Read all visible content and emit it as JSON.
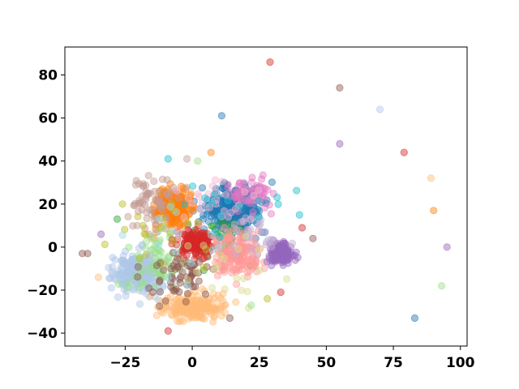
{
  "chart_data": {
    "type": "scatter",
    "title": "",
    "xlabel": "",
    "ylabel": "",
    "xlim": [
      -47.5,
      102.5
    ],
    "ylim": [
      -46,
      93
    ],
    "xticks": [
      -25,
      0,
      25,
      50,
      75,
      100
    ],
    "yticks": [
      -40,
      -20,
      0,
      20,
      40,
      60,
      80
    ],
    "grid": false,
    "legend": "none",
    "marker_alpha": 0.45,
    "clusters": [
      {
        "color": "#1f77b4",
        "center": [
          16,
          17
        ],
        "spread": [
          10,
          9
        ],
        "count": 260
      },
      {
        "color": "#aec7e8",
        "center": [
          -20,
          -12
        ],
        "spread": [
          8,
          8
        ],
        "count": 240
      },
      {
        "color": "#ff7f0e",
        "center": [
          -7,
          18
        ],
        "spread": [
          6,
          7
        ],
        "count": 220
      },
      {
        "color": "#ffbb78",
        "center": [
          0,
          -28
        ],
        "spread": [
          10,
          5
        ],
        "count": 200
      },
      {
        "color": "#2ca02c",
        "center": [
          12,
          2
        ],
        "spread": [
          9,
          9
        ],
        "count": 40
      },
      {
        "color": "#98df8a",
        "center": [
          -12,
          -6
        ],
        "spread": [
          10,
          10
        ],
        "count": 70
      },
      {
        "color": "#d62728",
        "center": [
          1,
          2
        ],
        "spread": [
          5,
          5
        ],
        "count": 150
      },
      {
        "color": "#ff9896",
        "center": [
          18,
          -3
        ],
        "spread": [
          8,
          10
        ],
        "count": 160
      },
      {
        "color": "#9467bd",
        "center": [
          33,
          -3
        ],
        "spread": [
          4,
          4
        ],
        "count": 150
      },
      {
        "color": "#c5b0d5",
        "center": [
          24,
          6
        ],
        "spread": [
          8,
          8
        ],
        "count": 30
      },
      {
        "color": "#8c564b",
        "center": [
          -5,
          -14
        ],
        "spread": [
          10,
          10
        ],
        "count": 60
      },
      {
        "color": "#c49c94",
        "center": [
          -14,
          20
        ],
        "spread": [
          9,
          10
        ],
        "count": 70
      },
      {
        "color": "#e377c2",
        "center": [
          21,
          25
        ],
        "spread": [
          7,
          7
        ],
        "count": 60
      },
      {
        "color": "#f7b6d2",
        "center": [
          8,
          22
        ],
        "spread": [
          12,
          10
        ],
        "count": 30
      },
      {
        "color": "#bcbd22",
        "center": [
          -10,
          8
        ],
        "spread": [
          15,
          15
        ],
        "count": 20
      },
      {
        "color": "#dbdb8d",
        "center": [
          15,
          -10
        ],
        "spread": [
          15,
          15
        ],
        "count": 20
      },
      {
        "color": "#17becf",
        "center": [
          15,
          20
        ],
        "spread": [
          15,
          12
        ],
        "count": 15
      },
      {
        "color": "#9edae5",
        "center": [
          -5,
          5
        ],
        "spread": [
          15,
          15
        ],
        "count": 15
      }
    ],
    "outliers": [
      {
        "x": 29,
        "y": 86,
        "color": "#d62728"
      },
      {
        "x": 55,
        "y": 74,
        "color": "#8c564b"
      },
      {
        "x": 11,
        "y": 61,
        "color": "#1f77b4"
      },
      {
        "x": 70,
        "y": 64,
        "color": "#aec7e8"
      },
      {
        "x": 55,
        "y": 48,
        "color": "#9467bd"
      },
      {
        "x": 79,
        "y": 44,
        "color": "#d62728"
      },
      {
        "x": 89,
        "y": 32,
        "color": "#ffbb78"
      },
      {
        "x": 90,
        "y": 17,
        "color": "#ff7f0e"
      },
      {
        "x": 95,
        "y": 0,
        "color": "#9467bd"
      },
      {
        "x": 93,
        "y": -18,
        "color": "#98df8a"
      },
      {
        "x": 83,
        "y": -33,
        "color": "#1f77b4"
      },
      {
        "x": 45,
        "y": 4,
        "color": "#8c564b"
      },
      {
        "x": 41,
        "y": 9,
        "color": "#d62728"
      },
      {
        "x": 40,
        "y": 15,
        "color": "#17becf"
      },
      {
        "x": -41,
        "y": -3,
        "color": "#8c564b"
      },
      {
        "x": -39,
        "y": -3,
        "color": "#8c564b"
      },
      {
        "x": -34,
        "y": 6,
        "color": "#9467bd"
      },
      {
        "x": -35,
        "y": -14,
        "color": "#ffbb78"
      },
      {
        "x": -9,
        "y": -39,
        "color": "#d62728"
      },
      {
        "x": 14,
        "y": -33,
        "color": "#8c564b"
      },
      {
        "x": 28,
        "y": -24,
        "color": "#bcbd22"
      },
      {
        "x": 33,
        "y": -21,
        "color": "#d62728"
      },
      {
        "x": 22,
        "y": -27,
        "color": "#98df8a"
      },
      {
        "x": -9,
        "y": 41,
        "color": "#17becf"
      },
      {
        "x": 7,
        "y": 44,
        "color": "#ff7f0e"
      },
      {
        "x": -26,
        "y": 20,
        "color": "#bcbd22"
      },
      {
        "x": -28,
        "y": 13,
        "color": "#2ca02c"
      },
      {
        "x": -2,
        "y": 41,
        "color": "#c49c94"
      },
      {
        "x": 2,
        "y": 40,
        "color": "#98df8a"
      }
    ]
  }
}
